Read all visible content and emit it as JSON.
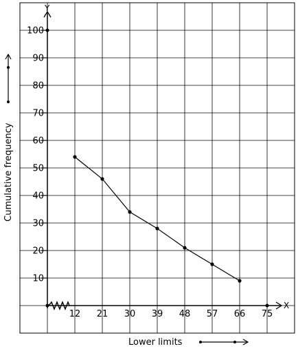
{
  "chart_data": {
    "type": "line",
    "title": "",
    "xlabel": "Lower limits",
    "ylabel": "Cumulative frequency",
    "x_axis_letter": "X",
    "y_axis_letter": "Y",
    "x_ticks": [
      "12",
      "21",
      "30",
      "39",
      "48",
      "57",
      "66",
      "75"
    ],
    "y_ticks": [
      "10",
      "20",
      "30",
      "40",
      "50",
      "60",
      "70",
      "80",
      "90",
      "100"
    ],
    "xlim": [
      3,
      75
    ],
    "ylim": [
      0,
      100
    ],
    "grid": true,
    "axis_break_on_x": true,
    "series": [
      {
        "x": [
          12,
          21,
          30,
          39,
          48,
          57,
          66
        ],
        "y": [
          54,
          46,
          34,
          28,
          21,
          15,
          9
        ]
      }
    ]
  }
}
